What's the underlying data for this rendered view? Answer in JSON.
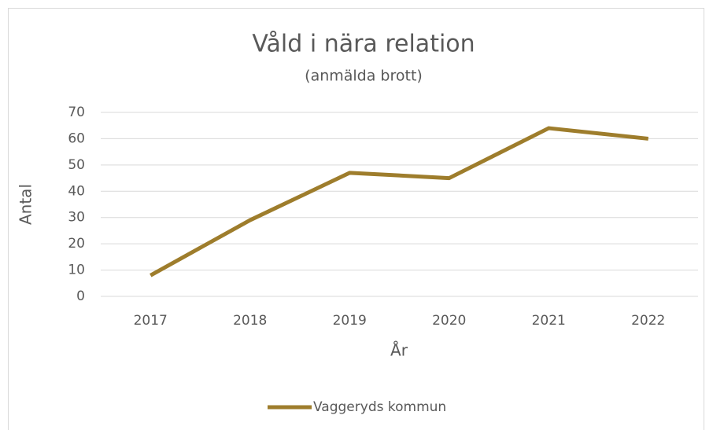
{
  "chart_data": {
    "type": "line",
    "title": "Våld i nära relation",
    "subtitle": "(anmälda brott)",
    "x_label": "År",
    "y_label": "Antal",
    "categories": [
      "2017",
      "2018",
      "2019",
      "2020",
      "2021",
      "2022"
    ],
    "series": [
      {
        "name": "Vaggeryds kommun",
        "color": "#9e7d2c",
        "values": [
          8,
          29,
          47,
          45,
          64,
          60
        ]
      }
    ],
    "ylim": [
      0,
      70
    ],
    "yticks": [
      0,
      10,
      20,
      30,
      40,
      50,
      60,
      70
    ],
    "grid": true,
    "legend": "bottom"
  }
}
